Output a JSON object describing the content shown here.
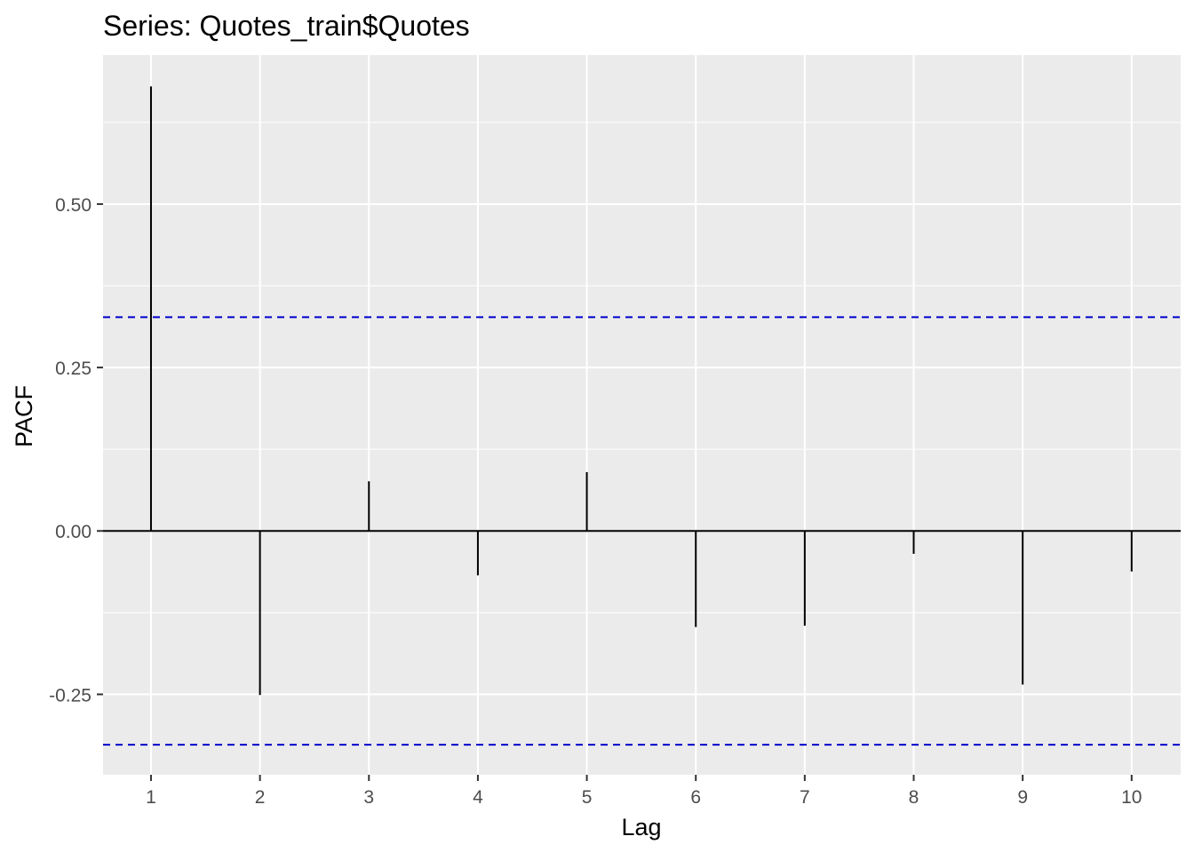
{
  "chart_data": {
    "type": "bar",
    "title": "Series: Quotes_train$Quotes",
    "xlabel": "Lag",
    "ylabel": "PACF",
    "x": [
      1,
      2,
      3,
      4,
      5,
      6,
      7,
      8,
      9,
      10
    ],
    "values": [
      0.68,
      -0.251,
      0.076,
      -0.068,
      0.09,
      -0.147,
      -0.145,
      -0.035,
      -0.235,
      -0.062
    ],
    "confidence_bound": 0.327,
    "xlim": [
      0.56,
      10.45
    ],
    "ylim": [
      -0.373,
      0.728
    ],
    "x_ticks": [
      "1",
      "2",
      "3",
      "4",
      "5",
      "6",
      "7",
      "8",
      "9",
      "10"
    ],
    "y_ticks": [
      "-0.25",
      "0.00",
      "0.25",
      "0.50"
    ],
    "y_tick_values": [
      -0.25,
      0,
      0.25,
      0.5
    ],
    "grid": true,
    "colors": {
      "panel_background": "#ebebeb",
      "grid": "#ffffff",
      "bars": "#000000",
      "confidence_line": "#0000cc",
      "tick_text": "#4d4d4d"
    }
  }
}
